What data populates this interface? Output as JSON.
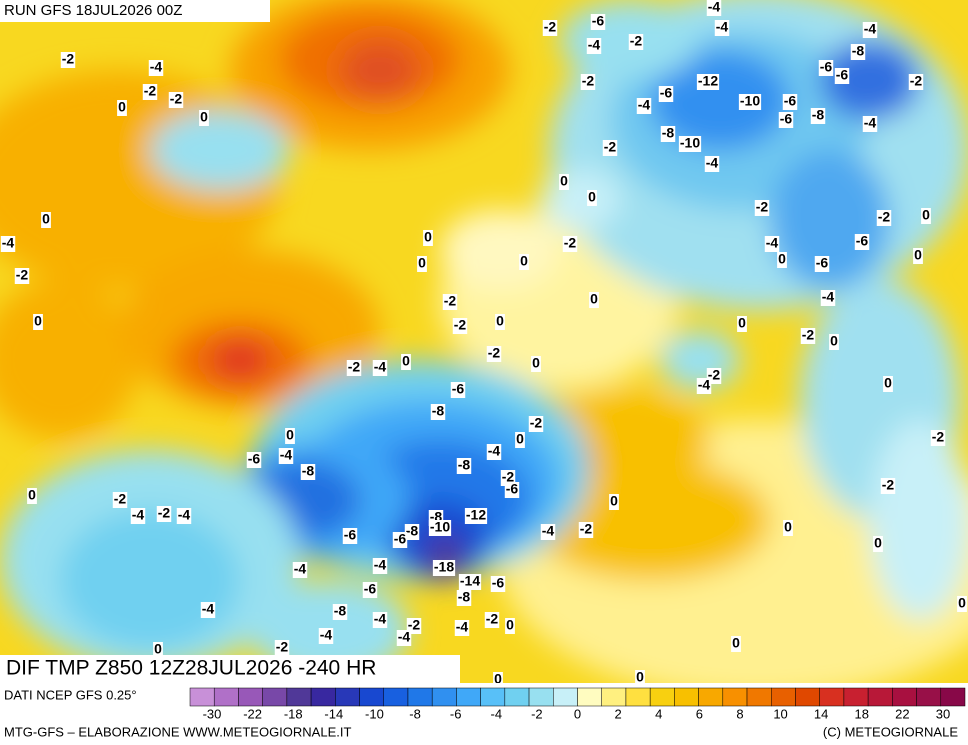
{
  "header": {
    "run": "RUN GFS 18JUL2026 00Z"
  },
  "map": {
    "title": "DIF TMP Z850 12Z28JUL2026 -240 HR",
    "contour_labels": [
      -2,
      -6,
      -4,
      -2,
      -4,
      -4,
      -4,
      -8,
      -6,
      -6,
      -2,
      -2,
      -4,
      -2,
      -2,
      0,
      0,
      -2,
      -4,
      -6,
      -12,
      -10,
      -6,
      -6,
      -8,
      -4,
      -8,
      -10,
      -4,
      -2,
      0,
      0,
      -2,
      -2,
      0,
      0,
      -4,
      0,
      -2,
      -4,
      -6,
      0,
      0,
      0,
      -6,
      0,
      -2,
      0,
      -4,
      -2,
      0,
      -2,
      0,
      0,
      -2,
      0,
      -2,
      0,
      -2,
      -4,
      0,
      -2,
      -4,
      0,
      -6,
      -8,
      -2,
      0,
      0,
      -2,
      -4,
      -4,
      -6,
      -8,
      -8,
      -2,
      -6,
      -2,
      0,
      -2,
      0,
      -4,
      -2,
      -4,
      -8,
      -12,
      -10,
      -8,
      -4,
      -2,
      0,
      -6,
      -6,
      0,
      -4,
      -4,
      -18,
      -14,
      -6,
      -8,
      -6,
      -4,
      -8,
      0,
      -4,
      -2,
      -4,
      -2,
      0,
      -4,
      -4,
      -2,
      0,
      0,
      0,
      0
    ]
  },
  "footer": {
    "source": "DATI NCEP GFS 0.25°",
    "credit": "MTG-GFS – ELABORAZIONE WWW.METEOGIORNALE.IT",
    "copyright": "(C) METEOGIORNALE"
  },
  "colorbar": {
    "colors": [
      "#c890d8",
      "#b070c8",
      "#9858b8",
      "#7848a8",
      "#503898",
      "#3828a0",
      "#2838b8",
      "#1848d0",
      "#1860e0",
      "#2078e8",
      "#3090f0",
      "#40a8f8",
      "#58c0f8",
      "#70d0f0",
      "#98e0f0",
      "#c8f0f8",
      "#fffcc0",
      "#fff080",
      "#ffe040",
      "#f8d010",
      "#f8c000",
      "#f8a800",
      "#f89000",
      "#f07800",
      "#e86000",
      "#e04800",
      "#d83020",
      "#c82030",
      "#b81838",
      "#a81040",
      "#981048",
      "#880848"
    ],
    "ticks": [
      -30,
      -22,
      -18,
      -14,
      -10,
      -8,
      -6,
      -4,
      -2,
      0,
      2,
      4,
      6,
      8,
      10,
      14,
      18,
      22,
      30
    ]
  }
}
